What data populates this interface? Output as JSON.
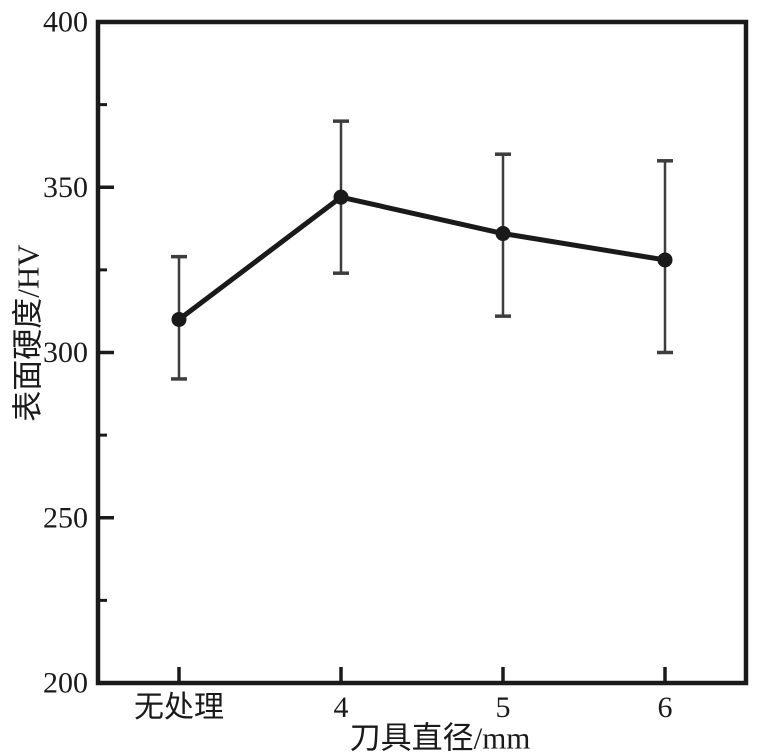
{
  "chart_data": {
    "type": "line",
    "title": "",
    "xlabel": "刀具直径/mm",
    "ylabel": "表面硬度/HV",
    "categories": [
      "无处理",
      "4",
      "5",
      "6"
    ],
    "values": [
      310,
      347,
      336,
      328
    ],
    "error_low": [
      292,
      324,
      311,
      300
    ],
    "error_high": [
      329,
      370,
      360,
      358
    ],
    "ylim": [
      200,
      400
    ],
    "yticks": [
      200,
      250,
      300,
      350,
      400
    ],
    "minor_tick_step": 25,
    "grid": false,
    "legend": false,
    "marker": "circle",
    "line_color": "#1a1a1a",
    "errorbar_color": "#3d3d3d",
    "background_color": "#ffffff"
  }
}
